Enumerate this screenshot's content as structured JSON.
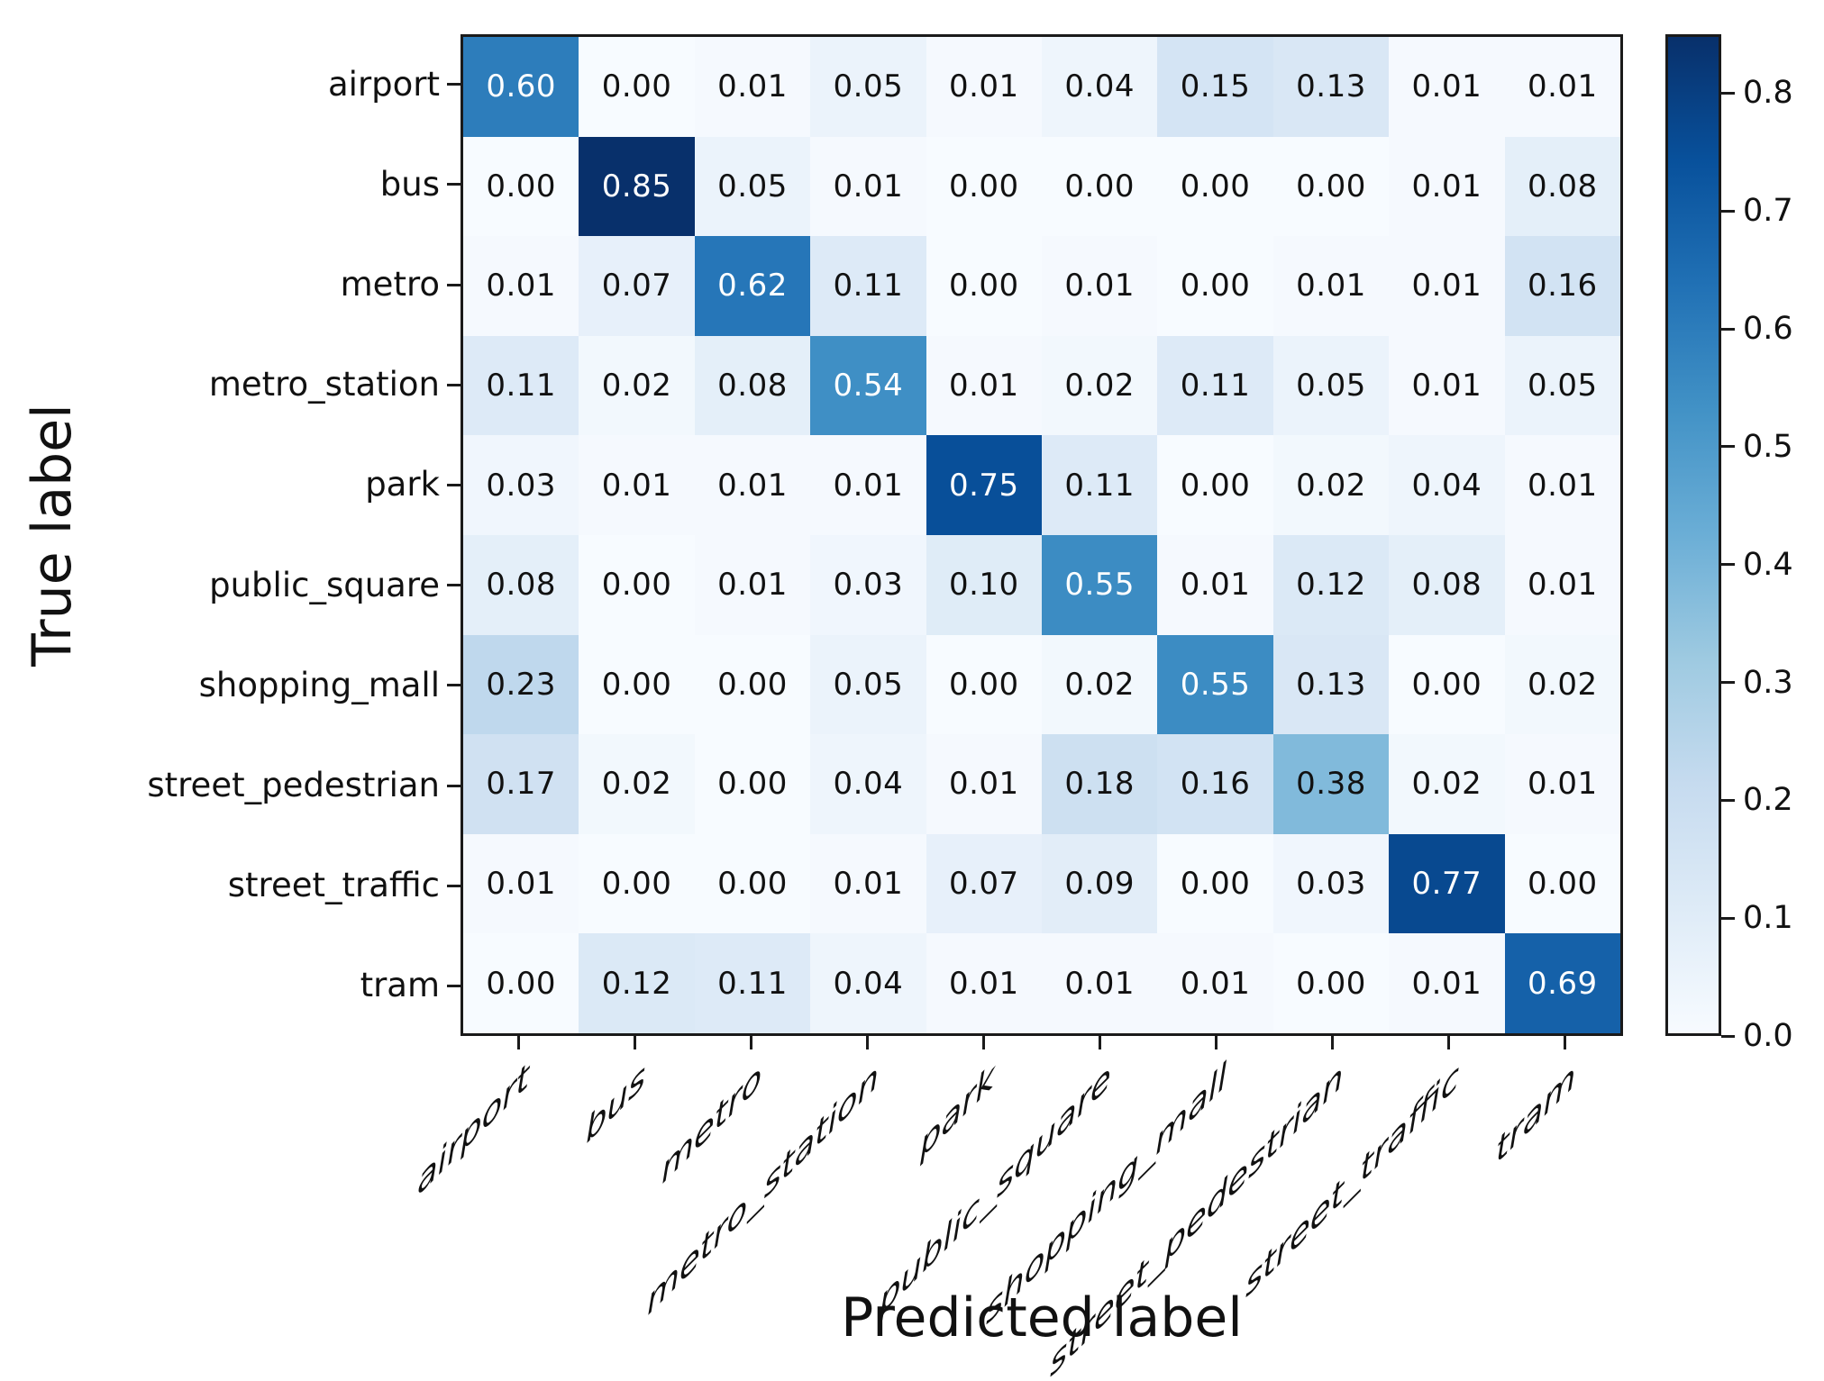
{
  "chart_data": {
    "type": "heatmap",
    "title": "",
    "xlabel": "Predicted label",
    "ylabel": "True label",
    "categories": [
      "airport",
      "bus",
      "metro",
      "metro_station",
      "park",
      "public_square",
      "shopping_mall",
      "street_pedestrian",
      "street_traffic",
      "tram"
    ],
    "matrix": [
      [
        0.6,
        0.0,
        0.01,
        0.05,
        0.01,
        0.04,
        0.15,
        0.13,
        0.01,
        0.01
      ],
      [
        0.0,
        0.85,
        0.05,
        0.01,
        0.0,
        0.0,
        0.0,
        0.0,
        0.01,
        0.08
      ],
      [
        0.01,
        0.07,
        0.62,
        0.11,
        0.0,
        0.01,
        0.0,
        0.01,
        0.01,
        0.16
      ],
      [
        0.11,
        0.02,
        0.08,
        0.54,
        0.01,
        0.02,
        0.11,
        0.05,
        0.01,
        0.05
      ],
      [
        0.03,
        0.01,
        0.01,
        0.01,
        0.75,
        0.11,
        0.0,
        0.02,
        0.04,
        0.01
      ],
      [
        0.08,
        0.0,
        0.01,
        0.03,
        0.1,
        0.55,
        0.01,
        0.12,
        0.08,
        0.01
      ],
      [
        0.23,
        0.0,
        0.0,
        0.05,
        0.0,
        0.02,
        0.55,
        0.13,
        0.0,
        0.02
      ],
      [
        0.17,
        0.02,
        0.0,
        0.04,
        0.01,
        0.18,
        0.16,
        0.38,
        0.02,
        0.01
      ],
      [
        0.01,
        0.0,
        0.0,
        0.01,
        0.07,
        0.09,
        0.0,
        0.03,
        0.77,
        0.0
      ],
      [
        0.0,
        0.12,
        0.11,
        0.04,
        0.01,
        0.01,
        0.01,
        0.0,
        0.01,
        0.69
      ]
    ],
    "vmin": 0.0,
    "vmax": 0.85,
    "cell_label_decimals": 2,
    "colormap": "Blues",
    "colormap_stops": [
      [
        0.0,
        "#f7fbff"
      ],
      [
        0.125,
        "#deebf7"
      ],
      [
        0.25,
        "#c6dbef"
      ],
      [
        0.375,
        "#9ecae1"
      ],
      [
        0.5,
        "#6baed6"
      ],
      [
        0.625,
        "#4292c6"
      ],
      [
        0.75,
        "#2171b5"
      ],
      [
        0.875,
        "#08519c"
      ],
      [
        1.0,
        "#08306b"
      ]
    ],
    "colorbar_ticks": [
      0.0,
      0.1,
      0.2,
      0.3,
      0.4,
      0.5,
      0.6,
      0.7,
      0.8
    ],
    "colorbar_tick_decimals": 1,
    "legend_position": "right",
    "grid": false,
    "colors": {
      "axis": "#1a1a1a",
      "text_dark": "#111111",
      "text_light": "#ffffff"
    },
    "text_switch_threshold": 0.425
  }
}
